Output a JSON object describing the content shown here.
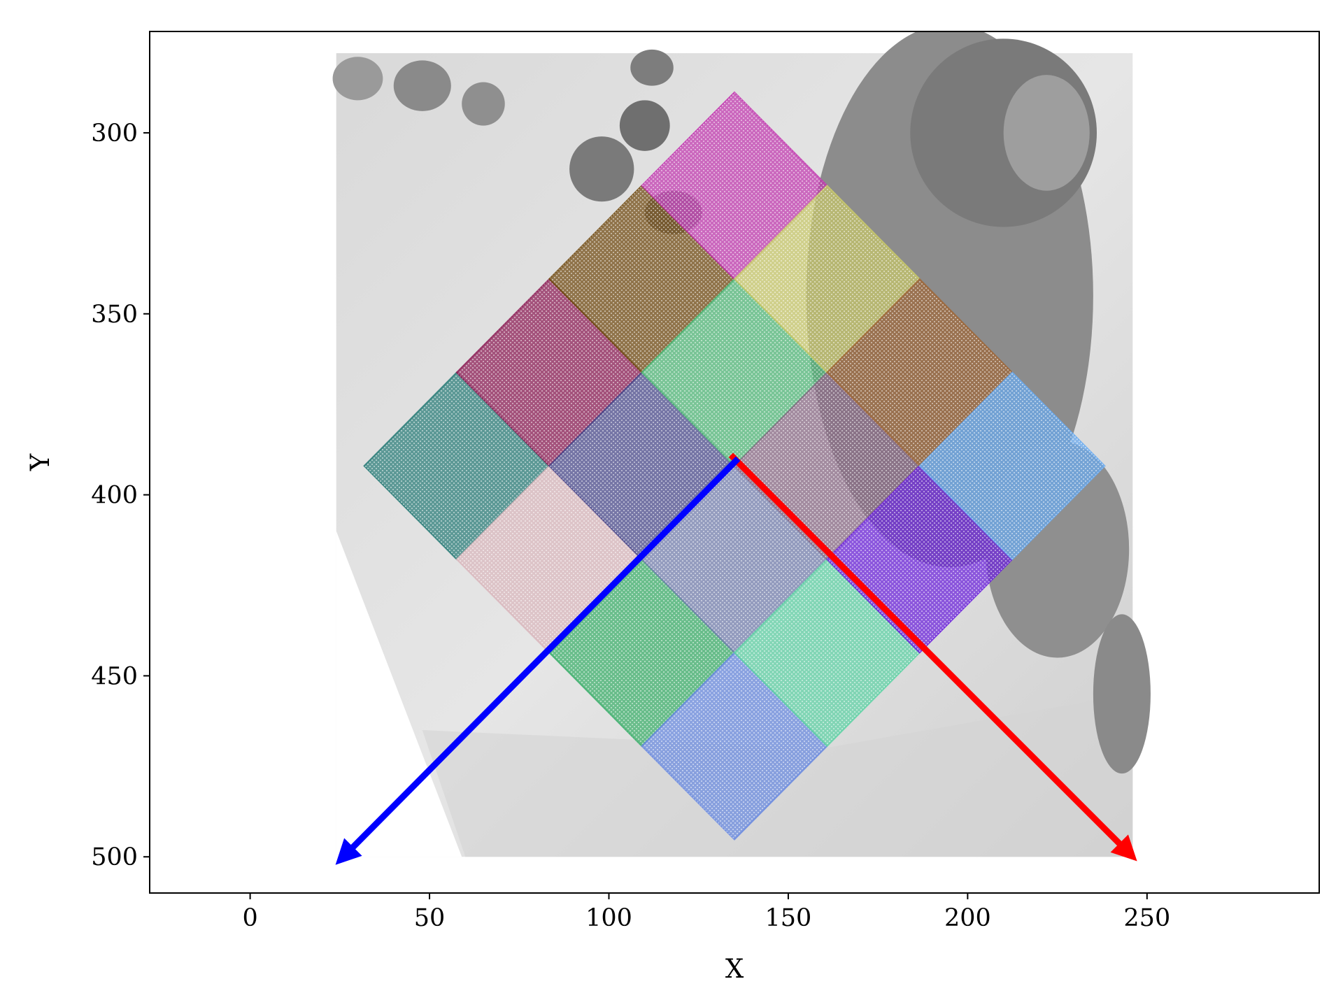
{
  "chart_data": {
    "type": "scatter",
    "title": "",
    "xlabel": "X",
    "ylabel": "Y",
    "xlim": [
      -28,
      298
    ],
    "ylim": [
      510,
      272
    ],
    "y_inverted": true,
    "xticks": [
      0,
      50,
      100,
      150,
      200,
      250
    ],
    "xtick_labels": [
      "0",
      "50",
      "100",
      "150",
      "200",
      "250"
    ],
    "yticks": [
      300,
      350,
      400,
      450,
      500
    ],
    "ytick_labels": [
      "300",
      "350",
      "400",
      "450",
      "500"
    ],
    "grid": false,
    "legend": "none",
    "background_image": {
      "description": "grayscale photograph",
      "extent_x": [
        24,
        246
      ],
      "extent_y": [
        500,
        278
      ]
    },
    "grid_center": [
      135,
      392
    ],
    "grid_axis_u": [
      0.707,
      -0.707
    ],
    "grid_axis_v": [
      0.707,
      0.707
    ],
    "cell_size": 36.5,
    "patches": [
      {
        "u": -2,
        "v": -2,
        "color": "#2a7d78"
      },
      {
        "u": -2,
        "v": -1,
        "color": "#d9b7bd"
      },
      {
        "u": -1,
        "v": -2,
        "color": "#8c1c55"
      },
      {
        "u": -1,
        "v": -1,
        "color": "#4b4b8e"
      },
      {
        "u": -2,
        "v": 0,
        "color": "#3aae6a"
      },
      {
        "u": 0,
        "v": -2,
        "color": "#704a10"
      },
      {
        "u": -1,
        "v": 0,
        "color": "#7681b0"
      },
      {
        "u": 0,
        "v": -1,
        "color": "#50b878"
      },
      {
        "u": 1,
        "v": -2,
        "color": "#c23ab0"
      },
      {
        "u": -2,
        "v": 1,
        "color": "#6a8ae0"
      },
      {
        "u": -1,
        "v": 1,
        "color": "#60d2a6"
      },
      {
        "u": 0,
        "v": 0,
        "color": "#8a6b86"
      },
      {
        "u": 1,
        "v": -1,
        "color": "#c8c86a"
      },
      {
        "u": 0,
        "v": 1,
        "color": "#6c22dc"
      },
      {
        "u": 1,
        "v": 0,
        "color": "#a0683a"
      },
      {
        "u": 1,
        "v": 1,
        "color": "#6aaaf0"
      }
    ],
    "arrows": [
      {
        "name": "u-axis",
        "color": "#ff0000",
        "from": [
          134,
          389
        ],
        "to": [
          245,
          499
        ]
      },
      {
        "name": "v-axis",
        "color": "#0000ff",
        "from": [
          136,
          390
        ],
        "to": [
          26,
          500
        ]
      }
    ]
  }
}
